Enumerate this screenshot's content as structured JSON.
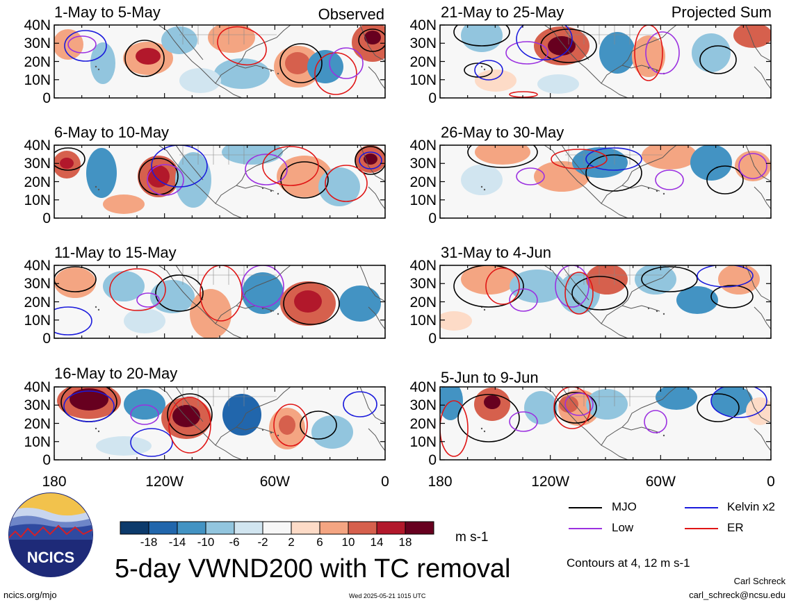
{
  "panels": [
    {
      "title": "1-May to 5-May",
      "note": "Observed"
    },
    {
      "title": "6-May to 10-May",
      "note": ""
    },
    {
      "title": "11-May to 15-May",
      "note": ""
    },
    {
      "title": "16-May to 20-May",
      "note": ""
    },
    {
      "title": "21-May to 25-May",
      "note": "Projected Sum"
    },
    {
      "title": "26-May to 30-May",
      "note": ""
    },
    {
      "title": "31-May to 4-Jun",
      "note": ""
    },
    {
      "title": "5-Jun to 9-Jun",
      "note": ""
    }
  ],
  "lat_labels": [
    "40N",
    "30N",
    "20N",
    "10N",
    "0"
  ],
  "lon_labels": [
    "180",
    "120W",
    "60W",
    "0"
  ],
  "colorbar": {
    "labels": [
      "-18",
      "-14",
      "-10",
      "-6",
      "-2",
      "2",
      "6",
      "10",
      "14",
      "18"
    ],
    "colors": [
      "#0c3a6b",
      "#2166ac",
      "#4393c3",
      "#92c5de",
      "#d1e5f0",
      "#f7f7f7",
      "#fddbc7",
      "#f4a582",
      "#d6604d",
      "#b2182b",
      "#67001f"
    ],
    "unit": "m s-1"
  },
  "legend": {
    "items": [
      {
        "label": "MJO",
        "color": "#000000"
      },
      {
        "label": "Kelvin x2",
        "color": "#1a1adc"
      },
      {
        "label": "Low",
        "color": "#9b30e0"
      },
      {
        "label": "ER",
        "color": "#e01515"
      }
    ],
    "contours_note": "Contours at 4, 12 m s-1"
  },
  "main_title": "5-day VWND200 with TC removal",
  "logo_text": "NCICS",
  "footer": {
    "url": "ncics.org/mjo",
    "timestamp": "Wed 2025-05-21 1015 UTC",
    "author": "Carl Schreck",
    "email": "carl_schreck@ncsu.edu"
  }
}
